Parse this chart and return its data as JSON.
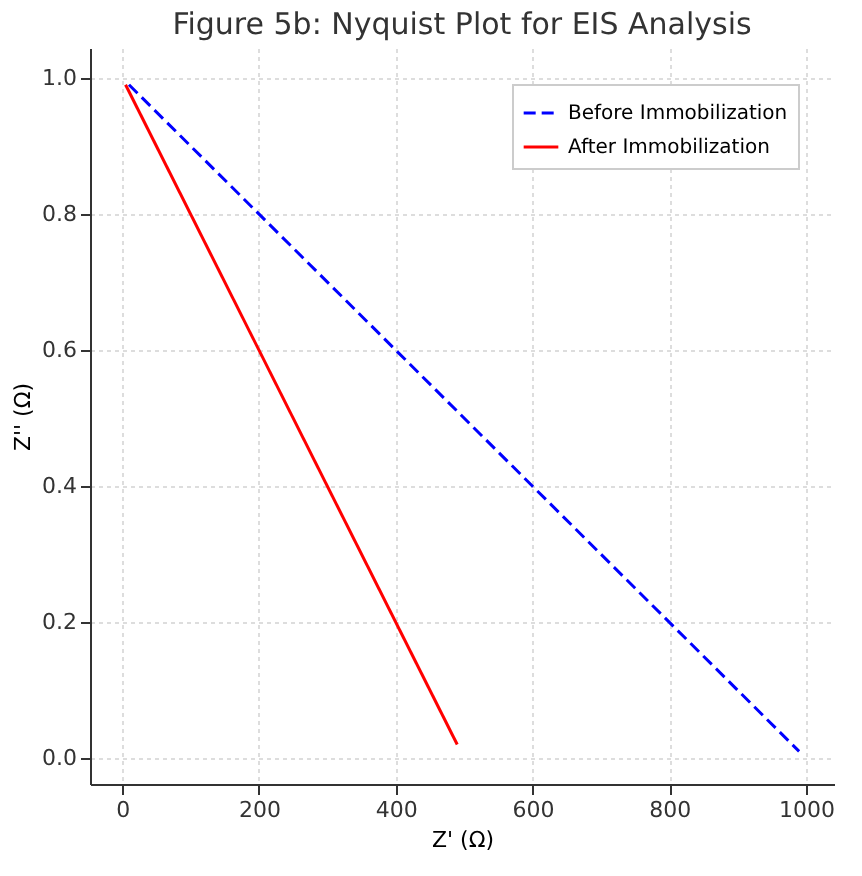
{
  "chart_data": {
    "type": "line",
    "title": "Figure 5b: Nyquist Plot for EIS Analysis",
    "xlabel": "Z' (Ω)",
    "ylabel": "Z'' (Ω)",
    "series": [
      {
        "name": "Before Immobilization",
        "color": "#0000ff",
        "line_style": "dashed",
        "x": [
          10,
          990
        ],
        "values": [
          0.99,
          0.01
        ]
      },
      {
        "name": "After Immobilization",
        "color": "#ff0000",
        "line_style": "solid",
        "x": [
          5,
          490
        ],
        "values": [
          0.99,
          0.02
        ]
      }
    ],
    "xlim": [
      -47,
      1041
    ],
    "ylim": [
      -0.038,
      1.044
    ],
    "xticks": [
      0,
      200,
      400,
      600,
      800,
      1000
    ],
    "yticks": [
      {
        "value": 0,
        "label": "0.0"
      },
      0.2,
      0.4,
      0.6,
      0.8,
      {
        "value": 1,
        "label": "1.0"
      }
    ],
    "grid": true,
    "legend": "top right",
    "marker": "none"
  }
}
